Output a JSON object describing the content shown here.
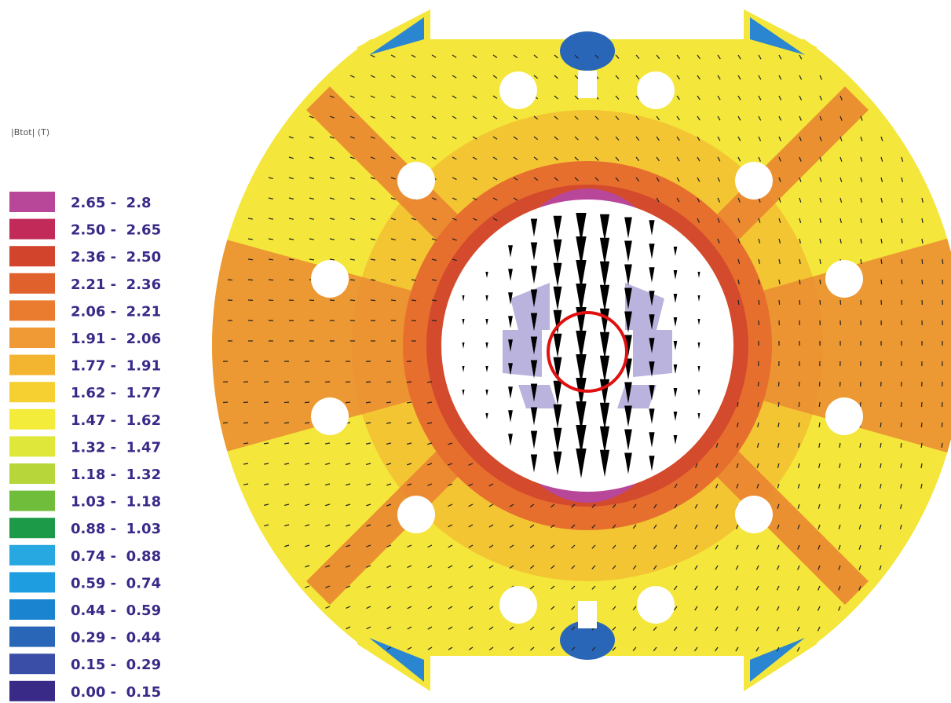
{
  "legend": {
    "title": "|Btot| (T)",
    "entries": [
      {
        "label": "2.65 -  2.8",
        "color": "#b8479a"
      },
      {
        "label": "2.50 -  2.65",
        "color": "#c22a5a"
      },
      {
        "label": "2.36 -  2.50",
        "color": "#d2452c"
      },
      {
        "label": "2.21 -  2.36",
        "color": "#e0612c"
      },
      {
        "label": "2.06 -  2.21",
        "color": "#ea7c30"
      },
      {
        "label": "1.91 -  2.06",
        "color": "#f09a35"
      },
      {
        "label": "1.77 -  1.91",
        "color": "#f3b530"
      },
      {
        "label": "1.62 -  1.77",
        "color": "#f6d030"
      },
      {
        "label": "1.47 -  1.62",
        "color": "#f4ec3a"
      },
      {
        "label": "1.32 -  1.47",
        "color": "#dfe83a"
      },
      {
        "label": "1.18 -  1.32",
        "color": "#b6d63a"
      },
      {
        "label": "1.03 -  1.18",
        "color": "#6fbd3a"
      },
      {
        "label": "0.88 -  1.03",
        "color": "#1d9a48"
      },
      {
        "label": "0.74 -  0.88",
        "color": "#28a8e0"
      },
      {
        "label": "0.59 -  0.74",
        "color": "#1e9ee0"
      },
      {
        "label": "0.44 -  0.59",
        "color": "#1a84d0"
      },
      {
        "label": "0.29 -  0.44",
        "color": "#2a66b8"
      },
      {
        "label": "0.15 -  0.29",
        "color": "#3a4ea8"
      },
      {
        "label": "0.00 -  0.15",
        "color": "#3a2a88"
      }
    ]
  }
}
